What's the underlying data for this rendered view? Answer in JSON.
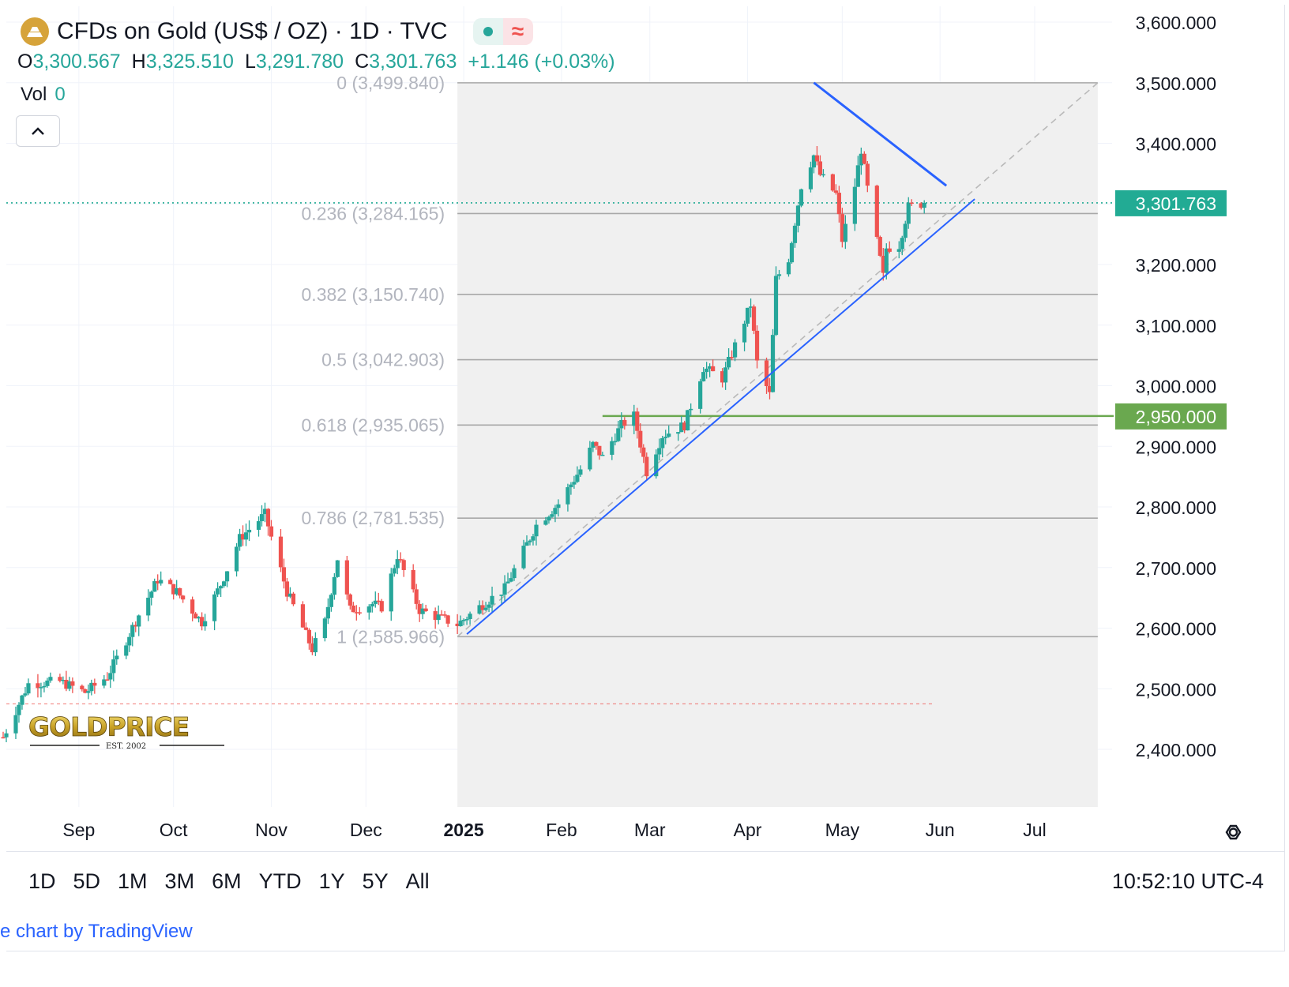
{
  "header": {
    "title": "CFDs on Gold (US$ / OZ) · 1D · TVC",
    "ohlc": [
      {
        "key": "O",
        "value": "3,300.567"
      },
      {
        "key": "H",
        "value": "3,325.510"
      },
      {
        "key": "L",
        "value": "3,291.780"
      },
      {
        "key": "C",
        "value": "3,301.763"
      }
    ],
    "change": "+1.146 (+0.03%)",
    "vol_label": "Vol",
    "vol_value": "0"
  },
  "bottom_bar": {
    "ranges": [
      "1D",
      "5D",
      "1M",
      "3M",
      "6M",
      "YTD",
      "1Y",
      "5Y",
      "All"
    ],
    "clock": "10:52:10 UTC-4"
  },
  "credit": "e chart by TradingView",
  "logo": {
    "text": "GOLDPRICE",
    "sub": "EST. 2002"
  },
  "colors": {
    "up": "#26a69a",
    "down": "#ef5350",
    "trendline": "#2962ff",
    "support": "#6aa84f",
    "fib": "#9e9e9e",
    "last_price": "#22ab94"
  },
  "chart_data": {
    "type": "candlestick",
    "title": "CFDs on Gold (US$ / OZ) · 1D · TVC",
    "ylim": [
      2300,
      3620
    ],
    "y_ticks": [
      "3,600.000",
      "3,500.000",
      "3,400.000",
      "3,300.000",
      "3,200.000",
      "3,100.000",
      "3,000.000",
      "2,900.000",
      "2,800.000",
      "2,700.000",
      "2,600.000",
      "2,500.000",
      "2,400.000"
    ],
    "y_tick_values": [
      3600,
      3500,
      3400,
      3300,
      3200,
      3100,
      3000,
      2900,
      2800,
      2700,
      2600,
      2500,
      2400
    ],
    "x_ticks": [
      "Sep",
      "Oct",
      "Nov",
      "Dec",
      "2025",
      "Feb",
      "Mar",
      "Apr",
      "May",
      "Jun",
      "Jul"
    ],
    "x_tick_dates": [
      "2024-09-01",
      "2024-10-01",
      "2024-11-01",
      "2024-12-01",
      "2025-01-01",
      "2025-02-01",
      "2025-03-01",
      "2025-04-01",
      "2025-05-01",
      "2025-06-01",
      "2025-07-01"
    ],
    "x_range": [
      "2024-08-08",
      "2025-07-21"
    ],
    "last_price": {
      "value": 3301.763,
      "label": "3,301.763"
    },
    "horizontal_line": {
      "value": 2950,
      "label": "2,950.000",
      "start_date": "2025-02-14"
    },
    "dashed_red_line": {
      "value": 2475
    },
    "fibonacci": {
      "start_date": "2024-12-30",
      "end_date": "2025-07-21",
      "levels": [
        {
          "ratio": "0",
          "price": 3499.84,
          "label": "0 (3,499.840)"
        },
        {
          "ratio": "0.236",
          "price": 3284.165,
          "label": "0.236 (3,284.165)"
        },
        {
          "ratio": "0.382",
          "price": 3150.74,
          "label": "0.382 (3,150.740)"
        },
        {
          "ratio": "0.5",
          "price": 3042.903,
          "label": "0.5 (3,042.903)"
        },
        {
          "ratio": "0.618",
          "price": 2935.065,
          "label": "0.618 (2,935.065)"
        },
        {
          "ratio": "0.786",
          "price": 2781.535,
          "label": "0.786 (2,781.535)"
        },
        {
          "ratio": "1",
          "price": 2585.966,
          "label": "1 (2,585.966)"
        }
      ],
      "trend_start": {
        "date": "2024-12-30",
        "price": 2585.966
      },
      "trend_end": {
        "date": "2025-07-21",
        "price": 3499.84
      }
    },
    "trendlines": [
      {
        "name": "lower",
        "start": {
          "date": "2025-01-02",
          "price": 2590
        },
        "end": {
          "date": "2025-06-12",
          "price": 3308
        }
      },
      {
        "name": "upper",
        "start": {
          "date": "2025-04-22",
          "price": 3500
        },
        "end": {
          "date": "2025-06-03",
          "price": 3330
        }
      }
    ],
    "candles_note": "daily OHLC, approximated from chart",
    "anchors": [
      [
        "2024-08-08",
        2420
      ],
      [
        "2024-08-16",
        2508
      ],
      [
        "2024-08-26",
        2512
      ],
      [
        "2024-09-03",
        2494
      ],
      [
        "2024-09-10",
        2520
      ],
      [
        "2024-09-16",
        2580
      ],
      [
        "2024-09-20",
        2622
      ],
      [
        "2024-09-26",
        2680
      ],
      [
        "2024-10-02",
        2660
      ],
      [
        "2024-10-10",
        2610
      ],
      [
        "2024-10-16",
        2672
      ],
      [
        "2024-10-22",
        2748
      ],
      [
        "2024-10-30",
        2788
      ],
      [
        "2024-11-01",
        2750
      ],
      [
        "2024-11-06",
        2660
      ],
      [
        "2024-11-14",
        2565
      ],
      [
        "2024-11-18",
        2610
      ],
      [
        "2024-11-22",
        2715
      ],
      [
        "2024-11-26",
        2630
      ],
      [
        "2024-12-03",
        2640
      ],
      [
        "2024-12-06",
        2635
      ],
      [
        "2024-12-11",
        2720
      ],
      [
        "2024-12-18",
        2630
      ],
      [
        "2024-12-24",
        2618
      ],
      [
        "2024-12-30",
        2606
      ],
      [
        "2025-01-06",
        2635
      ],
      [
        "2025-01-14",
        2665
      ],
      [
        "2025-01-24",
        2770
      ],
      [
        "2025-01-31",
        2805
      ],
      [
        "2025-02-07",
        2862
      ],
      [
        "2025-02-11",
        2903
      ],
      [
        "2025-02-14",
        2882
      ],
      [
        "2025-02-20",
        2935
      ],
      [
        "2025-02-24",
        2950
      ],
      [
        "2025-02-28",
        2858
      ],
      [
        "2025-03-05",
        2918
      ],
      [
        "2025-03-12",
        2935
      ],
      [
        "2025-03-18",
        3030
      ],
      [
        "2025-03-24",
        3012
      ],
      [
        "2025-04-02",
        3134
      ],
      [
        "2025-04-04",
        3038
      ],
      [
        "2025-04-08",
        2985
      ],
      [
        "2025-04-10",
        3176
      ],
      [
        "2025-04-14",
        3210
      ],
      [
        "2025-04-18",
        3330
      ],
      [
        "2025-04-22",
        3380
      ],
      [
        "2025-04-24",
        3348
      ],
      [
        "2025-04-29",
        3316
      ],
      [
        "2025-05-01",
        3240
      ],
      [
        "2025-05-05",
        3330
      ],
      [
        "2025-05-07",
        3390
      ],
      [
        "2025-05-09",
        3325
      ],
      [
        "2025-05-14",
        3180
      ],
      [
        "2025-05-15",
        3227
      ],
      [
        "2025-05-19",
        3232
      ],
      [
        "2025-05-22",
        3295
      ],
      [
        "2025-05-27",
        3301.763
      ]
    ]
  }
}
